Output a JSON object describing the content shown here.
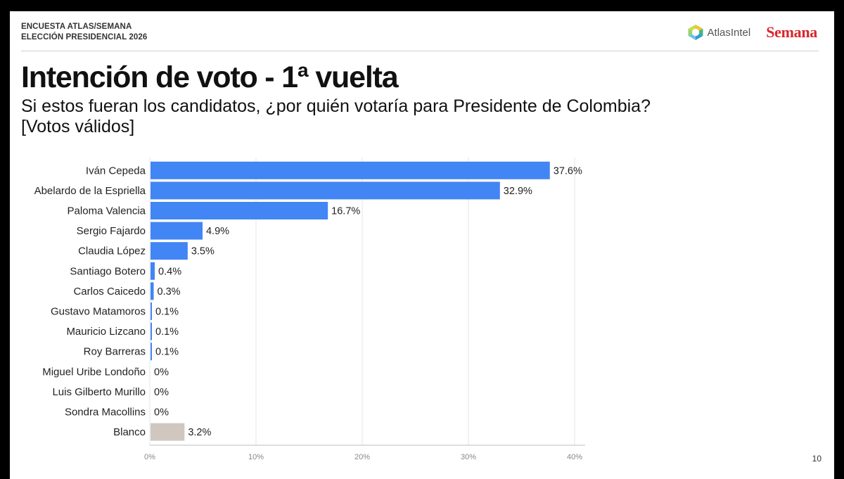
{
  "header": {
    "survey_line1": "ENCUESTA ATLAS/SEMANA",
    "survey_line2": "ELECCIÓN PRESIDENCIAL 2026",
    "atlas_logo_text": "AtlasIntel",
    "semana_logo_text": "Semana"
  },
  "chart_data": {
    "type": "bar",
    "orientation": "horizontal",
    "title": "Intención de voto - 1ª vuelta",
    "subtitle_line1": "Si estos fueran los candidatos, ¿por quién votaría para Presidente de Colombia?",
    "subtitle_line2": "[Votos válidos]",
    "categories": [
      "Iván Cepeda",
      "Abelardo de la Espriella",
      "Paloma Valencia",
      "Sergio Fajardo",
      "Claudia López",
      "Santiago Botero",
      "Carlos Caicedo",
      "Gustavo Matamoros",
      "Mauricio Lizcano",
      "Roy Barreras",
      "Miguel Uribe Londoño",
      "Luis Gilberto Murillo",
      "Sondra Macollins",
      "Blanco"
    ],
    "values": [
      37.6,
      32.9,
      16.7,
      4.9,
      3.5,
      0.4,
      0.3,
      0.1,
      0.1,
      0.1,
      0,
      0,
      0,
      3.2
    ],
    "value_labels": [
      "37.6%",
      "32.9%",
      "16.7%",
      "4.9%",
      "3.5%",
      "0.4%",
      "0.3%",
      "0.1%",
      "0.1%",
      "0.1%",
      "0%",
      "0%",
      "0%",
      "3.2%"
    ],
    "bar_colors": [
      "#4285f4",
      "#4285f4",
      "#4285f4",
      "#4285f4",
      "#4285f4",
      "#4285f4",
      "#4285f4",
      "#4285f4",
      "#4285f4",
      "#4285f4",
      "#4285f4",
      "#4285f4",
      "#4285f4",
      "#d0c7c0"
    ],
    "xlim": [
      0,
      40
    ],
    "xticks": [
      0,
      10,
      20,
      30,
      40
    ],
    "xtick_labels": [
      "0%",
      "10%",
      "20%",
      "30%",
      "40%"
    ],
    "grid": true
  },
  "footer": {
    "page_number": "10"
  }
}
